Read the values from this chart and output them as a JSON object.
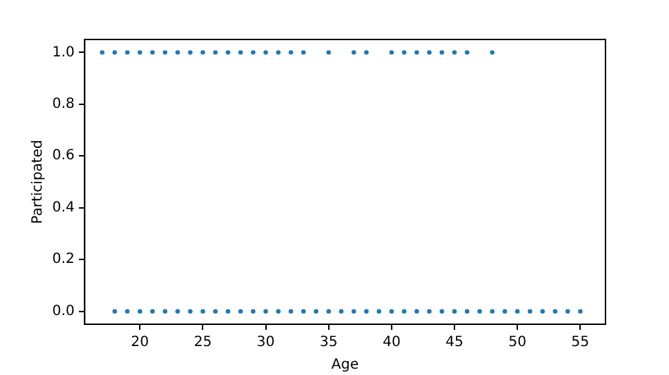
{
  "chart_data": {
    "type": "scatter",
    "xlabel": "Age",
    "ylabel": "Participated",
    "series": [
      {
        "color": "#1f77b4",
        "x": [
          17,
          18,
          19,
          20,
          21,
          22,
          23,
          24,
          25,
          26,
          27,
          28,
          29,
          30,
          31,
          32,
          33,
          35,
          37,
          38,
          40,
          41,
          42,
          43,
          44,
          45,
          46,
          48,
          18,
          19,
          20,
          21,
          22,
          23,
          24,
          25,
          26,
          27,
          28,
          29,
          30,
          31,
          32,
          33,
          34,
          35,
          36,
          37,
          38,
          39,
          40,
          41,
          42,
          43,
          44,
          45,
          46,
          47,
          48,
          49,
          50,
          51,
          52,
          53,
          54,
          55
        ],
        "values": [
          1,
          1,
          1,
          1,
          1,
          1,
          1,
          1,
          1,
          1,
          1,
          1,
          1,
          1,
          1,
          1,
          1,
          1,
          1,
          1,
          1,
          1,
          1,
          1,
          1,
          1,
          1,
          1,
          0,
          0,
          0,
          0,
          0,
          0,
          0,
          0,
          0,
          0,
          0,
          0,
          0,
          0,
          0,
          0,
          0,
          0,
          0,
          0,
          0,
          0,
          0,
          0,
          0,
          0,
          0,
          0,
          0,
          0,
          0,
          0,
          0,
          0,
          0,
          0,
          0,
          0
        ]
      }
    ],
    "xlim": [
      15.6,
      57
    ],
    "xticks": [
      20,
      25,
      30,
      35,
      40,
      45,
      50,
      55
    ],
    "ylim": [
      -0.05,
      1.05
    ],
    "yticks": [
      {
        "value": 0,
        "label": "0.0"
      },
      {
        "value": 0.2,
        "label": "0.2"
      },
      {
        "value": 0.4,
        "label": "0.4"
      },
      {
        "value": 0.6,
        "label": "0.6"
      },
      {
        "value": 0.8,
        "label": "0.8"
      },
      {
        "value": 1,
        "label": "1.0"
      }
    ],
    "grid": false,
    "legend": false,
    "marker": "circle"
  }
}
